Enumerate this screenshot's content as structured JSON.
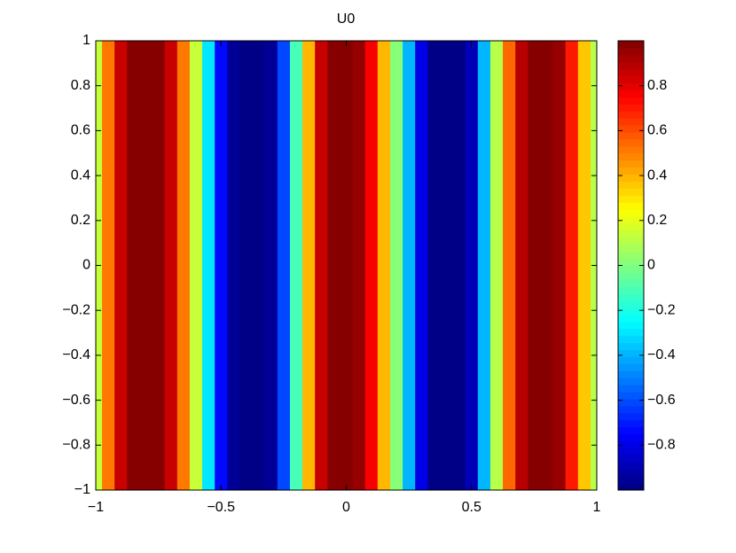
{
  "chart_data": {
    "type": "heatmap",
    "title": "U0",
    "x": [
      -1,
      -0.95,
      -0.9,
      -0.85,
      -0.8,
      -0.75,
      -0.7,
      -0.65,
      -0.6,
      -0.55,
      -0.5,
      -0.45,
      -0.4,
      -0.35,
      -0.3,
      -0.25,
      -0.2,
      -0.15,
      -0.1,
      -0.05,
      0,
      0.05,
      0.1,
      0.15,
      0.2,
      0.25,
      0.3,
      0.35,
      0.4,
      0.45,
      0.5,
      0.55,
      0.6,
      0.65,
      0.7,
      0.75,
      0.8,
      0.85,
      0.9,
      0.95,
      1
    ],
    "values": [
      0.15,
      0.5,
      0.85,
      0.98,
      1,
      0.98,
      0.85,
      0.5,
      0.15,
      -0.3,
      -0.75,
      -0.95,
      -1,
      -1,
      -0.95,
      -0.6,
      -0.1,
      0.4,
      0.85,
      0.98,
      1,
      0.95,
      0.75,
      0.4,
      0,
      -0.4,
      -0.8,
      -0.98,
      -1,
      -1,
      -0.9,
      -0.4,
      0.1,
      0.55,
      0.9,
      1,
      1,
      0.95,
      0.7,
      0.35,
      0.1
    ],
    "xlim": [
      -1,
      1
    ],
    "ylim": [
      -1,
      1
    ],
    "xticks": [
      {
        "value": -1,
        "label": "−1"
      },
      {
        "value": -0.5,
        "label": "−0.5"
      },
      0,
      0.5,
      1
    ],
    "yticks": [
      {
        "value": -1,
        "label": "−1"
      },
      {
        "value": -0.8,
        "label": "−0.8"
      },
      {
        "value": -0.6,
        "label": "−0.6"
      },
      {
        "value": -0.4,
        "label": "−0.4"
      },
      {
        "value": -0.2,
        "label": "−0.2"
      },
      0,
      0.2,
      0.4,
      0.6,
      0.8,
      1
    ],
    "colormap": "jet",
    "clim": [
      -1,
      1
    ],
    "cticks": [
      {
        "value": -0.8,
        "label": "−0.8"
      },
      {
        "value": -0.6,
        "label": "−0.6"
      },
      {
        "value": -0.4,
        "label": "−0.4"
      },
      {
        "value": -0.2,
        "label": "−0.2"
      },
      0,
      0.2,
      0.4,
      0.6,
      0.8
    ]
  }
}
